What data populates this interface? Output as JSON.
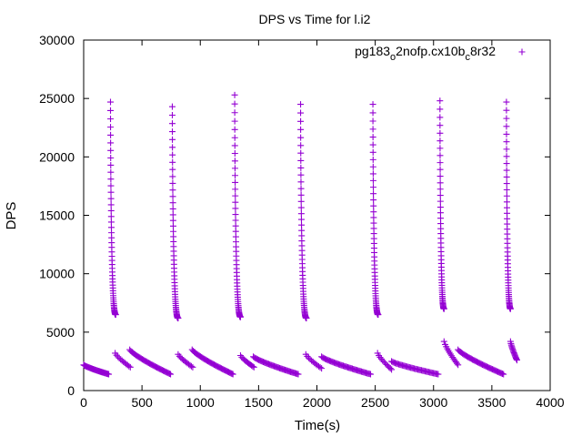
{
  "chart_data": {
    "type": "scatter",
    "title": "DPS vs Time for l.i2",
    "xlabel": "Time(s)",
    "ylabel": "DPS",
    "xlim": [
      0,
      4000
    ],
    "ylim": [
      0,
      30000
    ],
    "x_ticks": [
      0,
      500,
      1000,
      1500,
      2000,
      2500,
      3000,
      3500,
      4000
    ],
    "y_ticks": [
      0,
      5000,
      10000,
      15000,
      20000,
      25000,
      30000
    ],
    "grid": false,
    "legend_position": "top-right",
    "marker": "plus",
    "series": [
      {
        "name_parts": [
          "pg183",
          "o",
          "2nofp.cx10b",
          "c",
          "8r32"
        ],
        "color": "#9400d3",
        "cycles": [
          {
            "idle": {
              "x_start": 0,
              "x_end": 215,
              "y_start": 2200,
              "y_end": 1400,
              "count": 30
            },
            "spike": {
              "x": 230,
              "y_peak": 24700,
              "decay_to": 6500,
              "x_end": 275,
              "count": 55
            },
            "fall": {
              "x_start": 270,
              "x_end": 400,
              "y_start": 3200,
              "y_end": 2000,
              "count": 12
            },
            "ramp": {
              "x_start": 395,
              "x_end": 745,
              "y_start": 3500,
              "y_end": 1400,
              "count": 40
            }
          },
          {
            "spike": {
              "x": 760,
              "y_peak": 24300,
              "decay_to": 6200,
              "x_end": 810,
              "count": 55
            },
            "fall": {
              "x_start": 810,
              "x_end": 935,
              "y_start": 3100,
              "y_end": 2000,
              "count": 12
            },
            "ramp": {
              "x_start": 930,
              "x_end": 1280,
              "y_start": 3500,
              "y_end": 1400,
              "count": 40
            }
          },
          {
            "spike": {
              "x": 1295,
              "y_peak": 25300,
              "decay_to": 6300,
              "x_end": 1345,
              "count": 55
            },
            "fall": {
              "x_start": 1345,
              "x_end": 1460,
              "y_start": 3000,
              "y_end": 2000,
              "count": 12
            },
            "ramp": {
              "x_start": 1455,
              "x_end": 1840,
              "y_start": 2900,
              "y_end": 1400,
              "count": 42
            }
          },
          {
            "spike": {
              "x": 1860,
              "y_peak": 24500,
              "decay_to": 6200,
              "x_end": 1910,
              "count": 55
            },
            "fall": {
              "x_start": 1905,
              "x_end": 2040,
              "y_start": 3100,
              "y_end": 1900,
              "count": 12
            },
            "ramp": {
              "x_start": 2040,
              "x_end": 2460,
              "y_start": 2900,
              "y_end": 1400,
              "count": 44
            }
          },
          {
            "spike": {
              "x": 2480,
              "y_peak": 24500,
              "decay_to": 6500,
              "x_end": 2525,
              "count": 55
            },
            "fall": {
              "x_start": 2520,
              "x_end": 2640,
              "y_start": 3200,
              "y_end": 1800,
              "count": 12
            },
            "ramp": {
              "x_start": 2640,
              "x_end": 3040,
              "y_start": 2500,
              "y_end": 1400,
              "count": 40
            }
          },
          {
            "spike": {
              "x": 3055,
              "y_peak": 24800,
              "decay_to": 7000,
              "x_end": 3090,
              "count": 55
            },
            "fall": {
              "x_start": 3090,
              "x_end": 3210,
              "y_start": 4200,
              "y_end": 2200,
              "count": 14
            },
            "ramp": {
              "x_start": 3210,
              "x_end": 3600,
              "y_start": 3500,
              "y_end": 1400,
              "count": 42
            }
          },
          {
            "spike": {
              "x": 3625,
              "y_peak": 24700,
              "decay_to": 7000,
              "x_end": 3660,
              "count": 55
            },
            "fall": {
              "x_start": 3660,
              "x_end": 3715,
              "y_start": 4200,
              "y_end": 2600,
              "count": 16
            }
          }
        ]
      }
    ]
  }
}
